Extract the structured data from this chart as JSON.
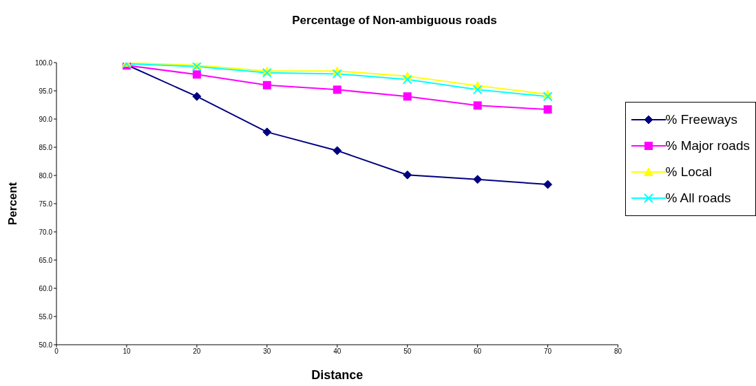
{
  "chart_data": {
    "type": "line",
    "title": "Percentage of Non-ambiguous roads",
    "xlabel": "Distance",
    "ylabel": "Percent",
    "x": [
      10,
      20,
      30,
      40,
      50,
      60,
      70
    ],
    "xlim": [
      0,
      80
    ],
    "xticks": [
      0,
      10,
      20,
      30,
      40,
      50,
      60,
      70,
      80
    ],
    "ylim": [
      50,
      100
    ],
    "yticks": [
      {
        "value": 50,
        "label": "50.0"
      },
      {
        "value": 55,
        "label": "55.0"
      },
      {
        "value": 60,
        "label": "60.0"
      },
      {
        "value": 65,
        "label": "65.0"
      },
      {
        "value": 70,
        "label": "70.0"
      },
      {
        "value": 75,
        "label": "75.0"
      },
      {
        "value": 80,
        "label": "80.0"
      },
      {
        "value": 85,
        "label": "85.0"
      },
      {
        "value": 90,
        "label": "90.0"
      },
      {
        "value": 95,
        "label": "95.0"
      },
      {
        "value": 100,
        "label": "100.0"
      }
    ],
    "grid": false,
    "legend": "right",
    "series": [
      {
        "name": "% Freeways",
        "color": "#000080",
        "marker": "diamond",
        "values": [
          99.6,
          94.0,
          87.7,
          84.4,
          80.1,
          79.3,
          78.4
        ]
      },
      {
        "name": "% Major roads",
        "color": "#ff00ff",
        "marker": "square",
        "values": [
          99.5,
          97.9,
          96.0,
          95.2,
          94.0,
          92.4,
          91.7
        ]
      },
      {
        "name": "% Local",
        "color": "#ffff00",
        "marker": "triangle",
        "values": [
          100.0,
          99.5,
          98.5,
          98.5,
          97.6,
          95.9,
          94.4
        ]
      },
      {
        "name": "% All roads",
        "color": "#00ffff",
        "marker": "cross",
        "values": [
          99.8,
          99.3,
          98.2,
          98.0,
          97.0,
          95.2,
          94.0
        ]
      }
    ]
  }
}
